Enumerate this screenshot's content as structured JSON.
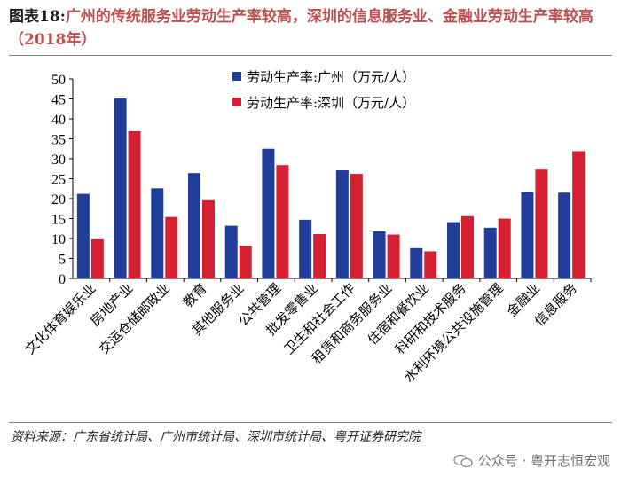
{
  "title": {
    "label": "图表18:",
    "text": "广州的传统服务业劳动生产率较高，深圳的信息服务业、金融业劳动生产率较高（2018年）"
  },
  "source": "资料来源：广东省统计局、广州市统计局、深圳市统计局、粤开证券研究院",
  "watermark": "公众号 · 粤开志恒宏观",
  "chart_data": {
    "type": "bar",
    "categories": [
      "文化体育娱乐业",
      "房地产业",
      "交运仓储邮政业",
      "教育",
      "其他服务业",
      "公共管理",
      "批发零售业",
      "卫生和社会工作",
      "租赁和商务服务业",
      "住宿和餐饮业",
      "科研和技术服务",
      "水利环境公共设施管理",
      "金融业",
      "信息服务"
    ],
    "series": [
      {
        "name": "劳动生产率:广州（万元/人）",
        "color": "#1f3d99",
        "values": [
          21.2,
          45.1,
          22.6,
          26.4,
          13.2,
          32.5,
          14.7,
          27.1,
          11.8,
          7.6,
          14.1,
          12.7,
          21.7,
          21.5
        ]
      },
      {
        "name": "劳动生产率:深圳（万元/人）",
        "color": "#d42030",
        "values": [
          9.8,
          36.9,
          15.4,
          19.6,
          8.2,
          28.4,
          11.1,
          26.2,
          11.0,
          6.8,
          15.6,
          15.0,
          27.3,
          31.9
        ]
      }
    ],
    "ylim": [
      0,
      50
    ],
    "yticks": [
      0,
      5,
      10,
      15,
      20,
      25,
      30,
      35,
      40,
      45,
      50
    ],
    "legend_position": "top-center"
  }
}
